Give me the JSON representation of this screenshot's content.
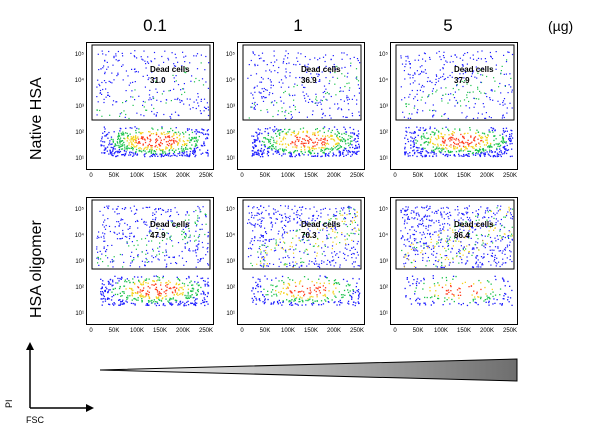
{
  "columns": [
    "0.1",
    "1",
    "5"
  ],
  "unit": "(µg)",
  "rows": [
    "Native HSA",
    "HSA oligomer"
  ],
  "gate_label": "Dead cells",
  "panels": [
    {
      "row": 0,
      "col": 0,
      "value": "31.0"
    },
    {
      "row": 0,
      "col": 1,
      "value": "36.9"
    },
    {
      "row": 0,
      "col": 2,
      "value": "37.9"
    },
    {
      "row": 1,
      "col": 0,
      "value": "47.9"
    },
    {
      "row": 1,
      "col": 1,
      "value": "70.3"
    },
    {
      "row": 1,
      "col": 2,
      "value": "86.4"
    }
  ],
  "y_ticks": [
    "10⁵",
    "10⁴",
    "10³",
    "10²",
    "10¹"
  ],
  "x_ticks": [
    "0",
    "50K",
    "100K",
    "150K",
    "200K",
    "250K"
  ],
  "axes": {
    "y": "PI",
    "x": "FSC"
  },
  "colors": {
    "low": "#1a1aff",
    "mid": "#19c24a",
    "high": "#f5d21a",
    "peak": "#ff3b1a",
    "gate": "#000000"
  }
}
